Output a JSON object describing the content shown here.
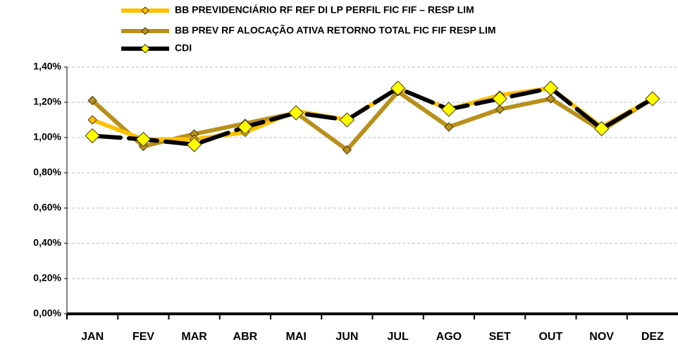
{
  "chart_data": {
    "type": "line",
    "categories": [
      "JAN",
      "FEV",
      "MAR",
      "ABR",
      "MAI",
      "JUN",
      "JUL",
      "AGO",
      "SET",
      "OUT",
      "NOV",
      "DEZ"
    ],
    "series": [
      {
        "name": "BB PREVIDENCIÁRIO RF REF DI LP PERFIL FIC FIF – RESP LIM",
        "color": "#FFC000",
        "marker_color": "#FFC000",
        "values": [
          1.1,
          0.99,
          0.99,
          1.03,
          1.15,
          1.1,
          1.28,
          1.16,
          1.24,
          1.28,
          1.06,
          1.22
        ]
      },
      {
        "name": "BB PREV RF ALOCAÇÃO ATIVA RETORNO TOTAL FIC FIF RESP LIM",
        "color": "#B8901A",
        "marker_color": "#B8901A",
        "values": [
          1.21,
          0.95,
          1.02,
          1.08,
          1.14,
          0.93,
          1.26,
          1.06,
          1.16,
          1.22,
          1.04,
          1.22
        ]
      },
      {
        "name": "CDI",
        "color": "#000000",
        "marker_color": "#FFFF00",
        "values": [
          1.01,
          0.99,
          0.96,
          1.06,
          1.14,
          1.1,
          1.28,
          1.16,
          1.22,
          1.28,
          1.05,
          1.22
        ]
      }
    ],
    "ylim": [
      0,
      1.4
    ],
    "yticks": [
      {
        "value": 0,
        "label": "0,00%"
      },
      {
        "value": 0.2,
        "label": "0,20%"
      },
      {
        "value": 0.4,
        "label": "0,40%"
      },
      {
        "value": 0.6,
        "label": "0,60%"
      },
      {
        "value": 0.8,
        "label": "0,80%"
      },
      {
        "value": 1.0,
        "label": "1,00%"
      },
      {
        "value": 1.2,
        "label": "1,20%"
      },
      {
        "value": 1.4,
        "label": "1,40%"
      }
    ],
    "grid": true,
    "legend": "top"
  }
}
